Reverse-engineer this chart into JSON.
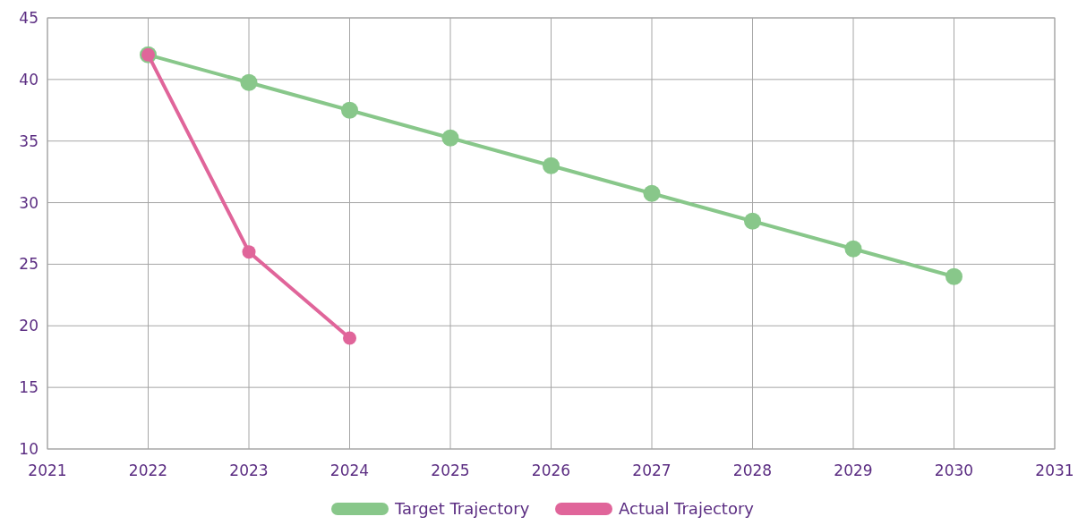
{
  "chart_data": {
    "type": "line",
    "x": [
      2022,
      2023,
      2024,
      2025,
      2026,
      2027,
      2028,
      2029,
      2030
    ],
    "series": [
      {
        "name": "Target Trajectory",
        "color": "#88c78a",
        "values": [
          42,
          39.75,
          37.5,
          35.25,
          33,
          30.75,
          28.5,
          26.25,
          24
        ]
      },
      {
        "name": "Actual Trajectory",
        "color": "#e0659a",
        "values": [
          42,
          26,
          19,
          null,
          null,
          null,
          null,
          null,
          null
        ]
      }
    ],
    "xlim": [
      2021,
      2031
    ],
    "xticks": [
      2021,
      2022,
      2023,
      2024,
      2025,
      2026,
      2027,
      2028,
      2029,
      2030,
      2031
    ],
    "ylim": [
      10,
      45
    ],
    "yticks": [
      10,
      15,
      20,
      25,
      30,
      35,
      40,
      45
    ],
    "grid": true,
    "legend": "bottom",
    "marker": "circle",
    "line_style": "solid"
  }
}
